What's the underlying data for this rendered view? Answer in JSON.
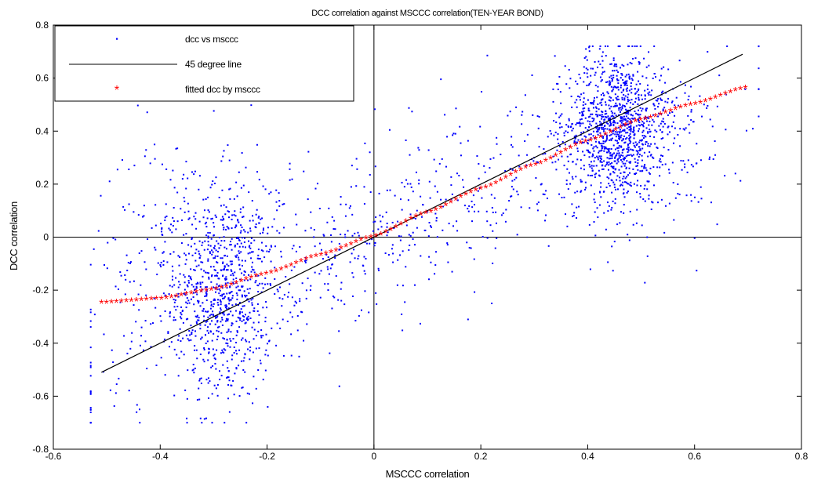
{
  "chart_data": {
    "type": "scatter",
    "title": "DCC correlation against MSCCC correlation(TEN-YEAR BOND)",
    "xlabel": "MSCCC correlation",
    "ylabel": "DCC  correlation",
    "xlim": [
      -0.6,
      0.8
    ],
    "ylim": [
      -0.8,
      0.8
    ],
    "xticks": [
      -0.6,
      -0.4,
      -0.2,
      0,
      0.2,
      0.4,
      0.6,
      0.8
    ],
    "yticks": [
      -0.8,
      -0.6,
      -0.4,
      -0.2,
      0,
      0.2,
      0.4,
      0.6,
      0.8
    ],
    "xtick_labels": [
      "-0.6",
      "-0.4",
      "-0.2",
      "0",
      "0.2",
      "0.4",
      "0.6",
      "0.8"
    ],
    "ytick_labels": [
      "-0.8",
      "-0.6",
      "-0.4",
      "-0.2",
      "0",
      "0.2",
      "0.4",
      "0.6",
      "0.8"
    ],
    "grid": false,
    "reference_lines": {
      "x": 0,
      "y": 0
    },
    "legend_position": "top-left",
    "series": [
      {
        "name": "dcc vs msccc",
        "kind": "points",
        "color": "#0000ff",
        "clusters": [
          {
            "x_center": -0.28,
            "x_spread": 0.045,
            "y_center": -0.22,
            "y_spread": 0.2,
            "count": 650
          },
          {
            "x_center": 0.45,
            "x_spread": 0.045,
            "y_center": 0.42,
            "y_spread": 0.14,
            "count": 900
          },
          {
            "x_center": -0.35,
            "x_spread": 0.08,
            "y_center": -0.05,
            "y_spread": 0.22,
            "count": 260
          },
          {
            "x_center": 0.5,
            "x_spread": 0.08,
            "y_center": 0.35,
            "y_spread": 0.18,
            "count": 300
          },
          {
            "x_center": 0.0,
            "x_spread": 0.28,
            "y_center": 0.0,
            "y_spread": 0.17,
            "count": 650
          }
        ]
      },
      {
        "name": "45 degree line",
        "kind": "line",
        "color": "#000000",
        "x": [
          -0.51,
          0.69
        ],
        "y": [
          -0.51,
          0.69
        ]
      },
      {
        "name": "fitted dcc by msccc",
        "kind": "markers",
        "color": "#ff0000",
        "x_range": [
          -0.51,
          0.695
        ],
        "marker_count": 130,
        "control_points": [
          {
            "x": -0.51,
            "y": -0.25
          },
          {
            "x": -0.4,
            "y": -0.235
          },
          {
            "x": -0.3,
            "y": -0.2
          },
          {
            "x": -0.2,
            "y": -0.14
          },
          {
            "x": -0.1,
            "y": -0.07
          },
          {
            "x": 0.0,
            "y": 0.0
          },
          {
            "x": 0.1,
            "y": 0.09
          },
          {
            "x": 0.2,
            "y": 0.18
          },
          {
            "x": 0.3,
            "y": 0.27
          },
          {
            "x": 0.4,
            "y": 0.36
          },
          {
            "x": 0.5,
            "y": 0.44
          },
          {
            "x": 0.6,
            "y": 0.5
          },
          {
            "x": 0.695,
            "y": 0.56
          }
        ]
      }
    ]
  }
}
